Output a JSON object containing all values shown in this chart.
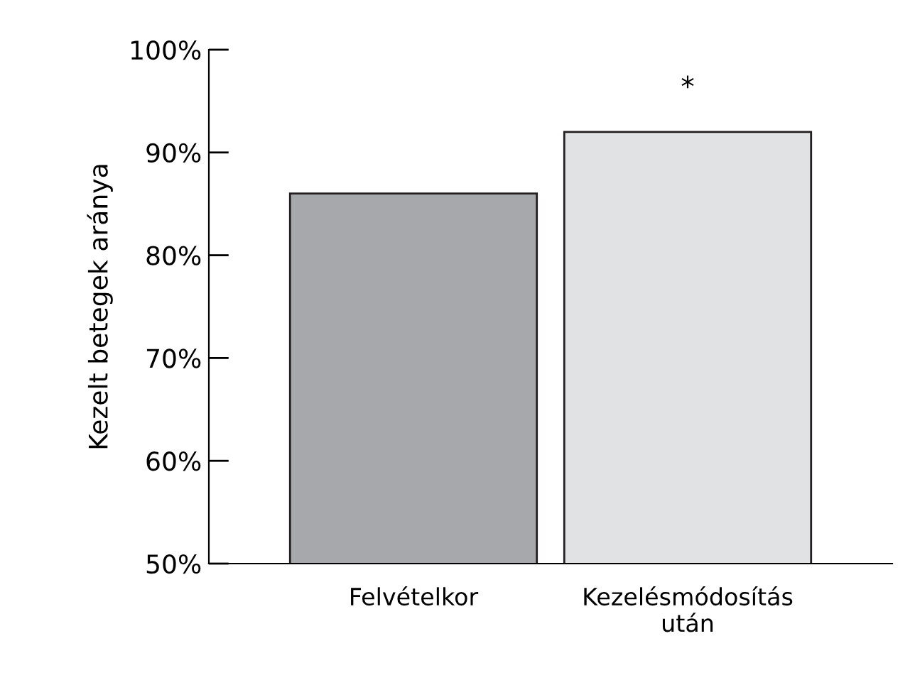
{
  "chart_data": {
    "type": "bar",
    "ylabel": "Kezelt betegek aránya",
    "categories": [
      "Felvételkor",
      "Kezelésmódosítás\nután"
    ],
    "values": [
      86,
      92
    ],
    "colors": [
      "#a7a8ab",
      "#e1e2e4"
    ],
    "ylim": [
      50,
      100
    ],
    "yticks": [
      {
        "value": 50,
        "label": "50%"
      },
      {
        "value": 60,
        "label": "60%"
      },
      {
        "value": 70,
        "label": "70%"
      },
      {
        "value": 80,
        "label": "80%"
      },
      {
        "value": 90,
        "label": "90%"
      },
      {
        "value": 100,
        "label": "100%"
      }
    ],
    "annotations": [
      "*"
    ],
    "grid": false,
    "legend": false
  }
}
